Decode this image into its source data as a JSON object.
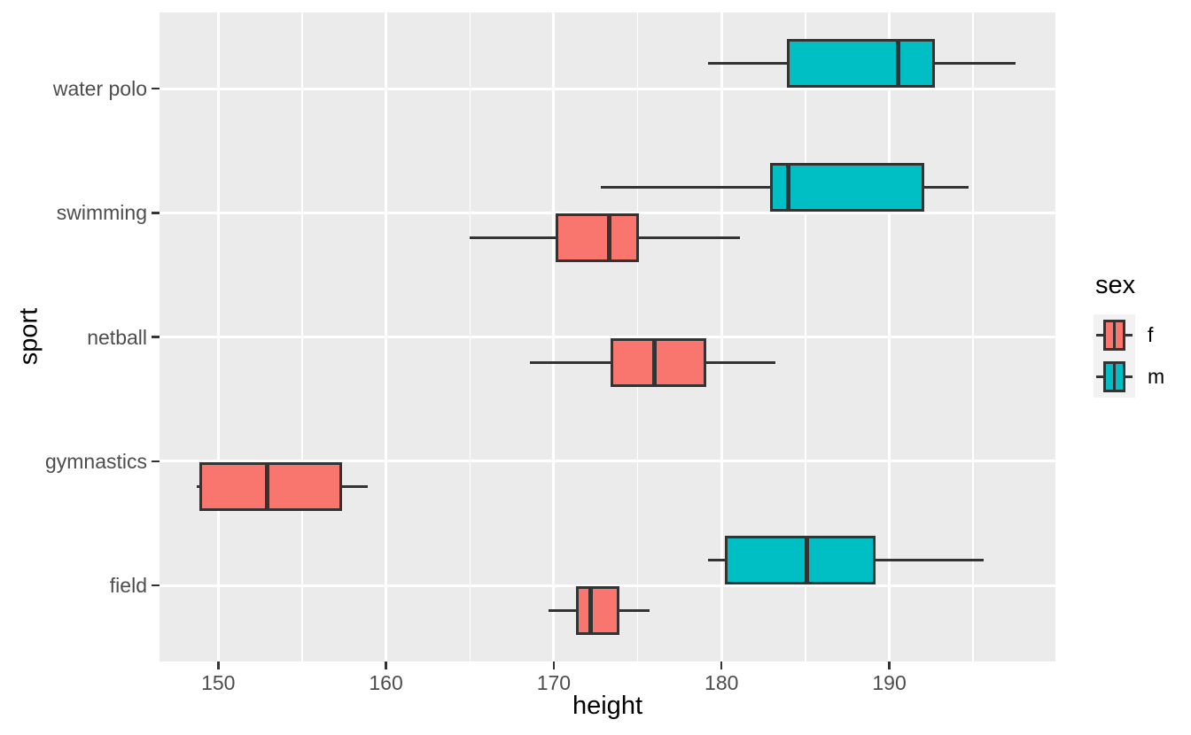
{
  "chart_data": {
    "type": "boxplot",
    "orientation": "horizontal",
    "xlabel": "height",
    "ylabel": "sport",
    "x_ticks": [
      150,
      160,
      170,
      180,
      190
    ],
    "x_minor_ticks": [
      155,
      165,
      175,
      185,
      195
    ],
    "xlim": [
      146.5,
      199.9
    ],
    "categories": [
      "water polo",
      "swimming",
      "netball",
      "gymnastics",
      "field"
    ],
    "series": [
      {
        "sport": "water polo",
        "sex": "m",
        "min": 179.2,
        "q1": 183.9,
        "median": 190.5,
        "q3": 192.7,
        "max": 197.5
      },
      {
        "sport": "swimming",
        "sex": "m",
        "min": 172.8,
        "q1": 182.9,
        "median": 184.0,
        "q3": 192.1,
        "max": 194.7
      },
      {
        "sport": "swimming",
        "sex": "f",
        "min": 165.0,
        "q1": 170.1,
        "median": 173.3,
        "q3": 175.1,
        "max": 181.1
      },
      {
        "sport": "netball",
        "sex": "f",
        "min": 168.6,
        "q1": 173.4,
        "median": 176.0,
        "q3": 179.1,
        "max": 183.2
      },
      {
        "sport": "gymnastics",
        "sex": "f",
        "min": 148.7,
        "q1": 148.9,
        "median": 152.9,
        "q3": 157.4,
        "max": 158.9
      },
      {
        "sport": "field",
        "sex": "m",
        "min": 179.2,
        "q1": 180.2,
        "median": 185.1,
        "q3": 189.2,
        "max": 195.6
      },
      {
        "sport": "field",
        "sex": "f",
        "min": 169.7,
        "q1": 171.3,
        "median": 172.2,
        "q3": 173.9,
        "max": 175.7
      }
    ],
    "legend": {
      "title": "sex",
      "entries": [
        {
          "label": "f",
          "color": "#F8766D"
        },
        {
          "label": "m",
          "color": "#00BFC4"
        }
      ],
      "position": "right"
    },
    "grid": true,
    "colors": {
      "f": "#F8766D",
      "m": "#00BFC4",
      "outline": "#333333",
      "panel_bg": "#EBEBEB",
      "gridline": "#FFFFFF",
      "tick_text": "#4D4D4D",
      "tick_mark": "#333333",
      "legend_key_bg": "#F2F2F2"
    }
  }
}
